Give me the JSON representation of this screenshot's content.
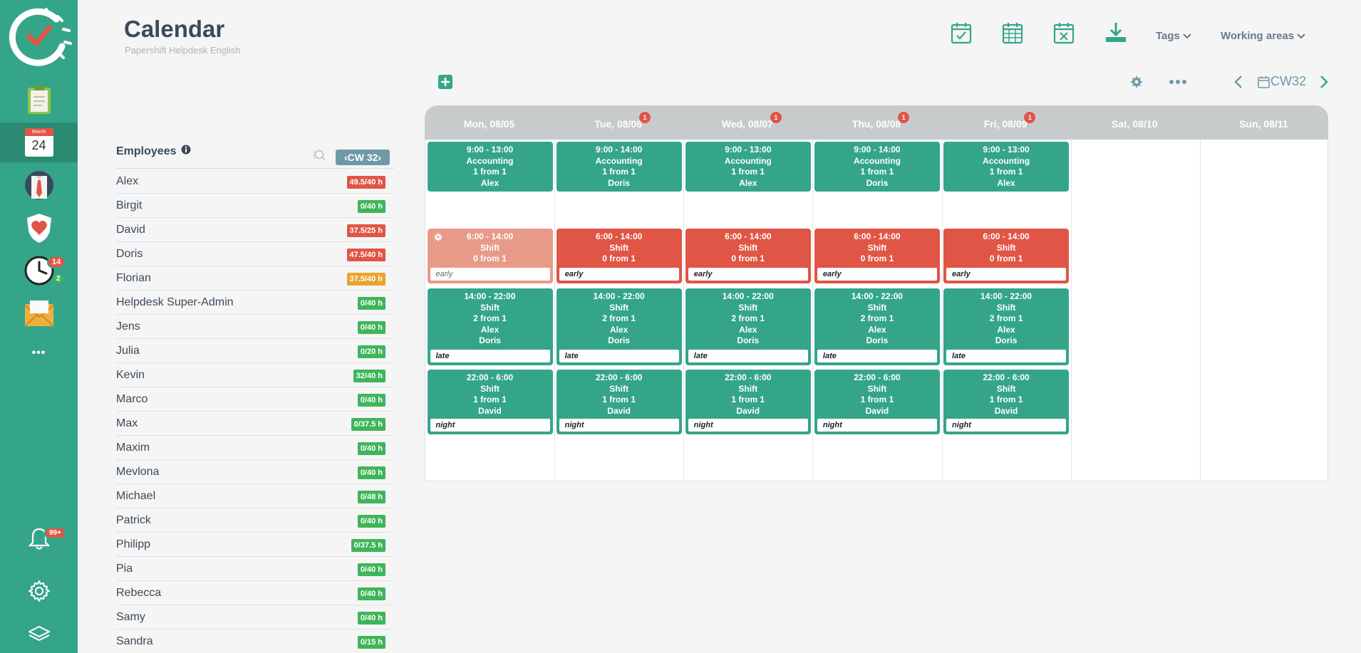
{
  "sidebar": {
    "calendar_month": "March",
    "calendar_day": "24",
    "time_badge_red": "14",
    "time_badge_green": "2",
    "notif_badge": "99+",
    "more_label": "•••"
  },
  "header": {
    "title": "Calendar",
    "subtitle": "Papershift Helpdesk English",
    "tags_label": "Tags",
    "working_areas_label": "Working areas"
  },
  "toolbar": {
    "week_label": "CW32"
  },
  "employees": {
    "title": "Employees",
    "cw_label": "‹CW 32›",
    "list": [
      {
        "name": "Alex",
        "hours": "49.5/40 h",
        "status": "red"
      },
      {
        "name": "Birgit",
        "hours": "0/40 h",
        "status": "green"
      },
      {
        "name": "David",
        "hours": "37.5/25 h",
        "status": "red"
      },
      {
        "name": "Doris",
        "hours": "47.5/40 h",
        "status": "red"
      },
      {
        "name": "Florian",
        "hours": "37.5/40 h",
        "status": "orange"
      },
      {
        "name": "Helpdesk Super-Admin",
        "hours": "0/40 h",
        "status": "green"
      },
      {
        "name": "Jens",
        "hours": "0/40 h",
        "status": "green"
      },
      {
        "name": "Julia",
        "hours": "0/20 h",
        "status": "green"
      },
      {
        "name": "Kevin",
        "hours": "32/40 h",
        "status": "green"
      },
      {
        "name": "Marco",
        "hours": "0/40 h",
        "status": "green"
      },
      {
        "name": "Max",
        "hours": "0/37.5 h",
        "status": "green"
      },
      {
        "name": "Maxim",
        "hours": "0/40 h",
        "status": "green"
      },
      {
        "name": "Mevlona",
        "hours": "0/40 h",
        "status": "green"
      },
      {
        "name": "Michael",
        "hours": "0/48 h",
        "status": "green"
      },
      {
        "name": "Patrick",
        "hours": "0/40 h",
        "status": "green"
      },
      {
        "name": "Philipp",
        "hours": "0/37.5 h",
        "status": "green"
      },
      {
        "name": "Pia",
        "hours": "0/40 h",
        "status": "green"
      },
      {
        "name": "Rebecca",
        "hours": "0/40 h",
        "status": "green"
      },
      {
        "name": "Samy",
        "hours": "0/40 h",
        "status": "green"
      },
      {
        "name": "Sandra",
        "hours": "0/15 h",
        "status": "green"
      }
    ]
  },
  "calendar": {
    "days": [
      {
        "label": "Mon, 08/05",
        "badge": ""
      },
      {
        "label": "Tue, 08/06",
        "badge": "1"
      },
      {
        "label": "Wed, 08/07",
        "badge": "1"
      },
      {
        "label": "Thu, 08/08",
        "badge": "1"
      },
      {
        "label": "Fri, 08/09",
        "badge": "1"
      },
      {
        "label": "Sat, 08/10",
        "badge": ""
      },
      {
        "label": "Sun, 08/11",
        "badge": ""
      }
    ],
    "shifts": [
      {
        "day": 0,
        "row": 0,
        "time": "9:00 - 13:00",
        "name": "Accounting",
        "count": "1 from 1",
        "people": [
          "Alex"
        ],
        "tag": "",
        "style": "green"
      },
      {
        "day": 1,
        "row": 0,
        "time": "9:00 - 14:00",
        "name": "Accounting",
        "count": "1 from 1",
        "people": [
          "Doris"
        ],
        "tag": "",
        "style": "green"
      },
      {
        "day": 2,
        "row": 0,
        "time": "9:00 - 13:00",
        "name": "Accounting",
        "count": "1 from 1",
        "people": [
          "Alex"
        ],
        "tag": "",
        "style": "green"
      },
      {
        "day": 3,
        "row": 0,
        "time": "9:00 - 14:00",
        "name": "Accounting",
        "count": "1 from 1",
        "people": [
          "Doris"
        ],
        "tag": "",
        "style": "green"
      },
      {
        "day": 4,
        "row": 0,
        "time": "9:00 - 13:00",
        "name": "Accounting",
        "count": "1 from 1",
        "people": [
          "Alex"
        ],
        "tag": "",
        "style": "green"
      },
      {
        "day": 0,
        "row": 1,
        "time": "6:00 - 14:00",
        "name": "Shift",
        "count": "0 from 1",
        "people": [],
        "tag": "early",
        "style": "faded"
      },
      {
        "day": 1,
        "row": 1,
        "time": "6:00 - 14:00",
        "name": "Shift",
        "count": "0 from 1",
        "people": [],
        "tag": "early",
        "style": "red"
      },
      {
        "day": 2,
        "row": 1,
        "time": "6:00 - 14:00",
        "name": "Shift",
        "count": "0 from 1",
        "people": [],
        "tag": "early",
        "style": "red"
      },
      {
        "day": 3,
        "row": 1,
        "time": "6:00 - 14:00",
        "name": "Shift",
        "count": "0 from 1",
        "people": [],
        "tag": "early",
        "style": "red"
      },
      {
        "day": 4,
        "row": 1,
        "time": "6:00 - 14:00",
        "name": "Shift",
        "count": "0 from 1",
        "people": [],
        "tag": "early",
        "style": "red"
      },
      {
        "day": 0,
        "row": 2,
        "time": "14:00 - 22:00",
        "name": "Shift",
        "count": "2 from 1",
        "people": [
          "Alex",
          "Doris"
        ],
        "tag": "late",
        "style": "green"
      },
      {
        "day": 1,
        "row": 2,
        "time": "14:00 - 22:00",
        "name": "Shift",
        "count": "2 from 1",
        "people": [
          "Alex",
          "Doris"
        ],
        "tag": "late",
        "style": "green"
      },
      {
        "day": 2,
        "row": 2,
        "time": "14:00 - 22:00",
        "name": "Shift",
        "count": "2 from 1",
        "people": [
          "Alex",
          "Doris"
        ],
        "tag": "late",
        "style": "green"
      },
      {
        "day": 3,
        "row": 2,
        "time": "14:00 - 22:00",
        "name": "Shift",
        "count": "2 from 1",
        "people": [
          "Alex",
          "Doris"
        ],
        "tag": "late",
        "style": "green"
      },
      {
        "day": 4,
        "row": 2,
        "time": "14:00 - 22:00",
        "name": "Shift",
        "count": "2 from 1",
        "people": [
          "Alex",
          "Doris"
        ],
        "tag": "late",
        "style": "green"
      },
      {
        "day": 0,
        "row": 3,
        "time": "22:00 - 6:00",
        "name": "Shift",
        "count": "1 from 1",
        "people": [
          "David"
        ],
        "tag": "night",
        "style": "green"
      },
      {
        "day": 1,
        "row": 3,
        "time": "22:00 - 6:00",
        "name": "Shift",
        "count": "1 from 1",
        "people": [
          "David"
        ],
        "tag": "night",
        "style": "green"
      },
      {
        "day": 2,
        "row": 3,
        "time": "22:00 - 6:00",
        "name": "Shift",
        "count": "1 from 1",
        "people": [
          "David"
        ],
        "tag": "night",
        "style": "green"
      },
      {
        "day": 3,
        "row": 3,
        "time": "22:00 - 6:00",
        "name": "Shift",
        "count": "1 from 1",
        "people": [
          "David"
        ],
        "tag": "night",
        "style": "green"
      },
      {
        "day": 4,
        "row": 3,
        "time": "22:00 - 6:00",
        "name": "Shift",
        "count": "1 from 1",
        "people": [
          "David"
        ],
        "tag": "night",
        "style": "green"
      }
    ]
  },
  "colors": {
    "brand": "#35a58a",
    "danger": "#e05545",
    "warning": "#e8a52c",
    "success": "#3fb55a"
  }
}
